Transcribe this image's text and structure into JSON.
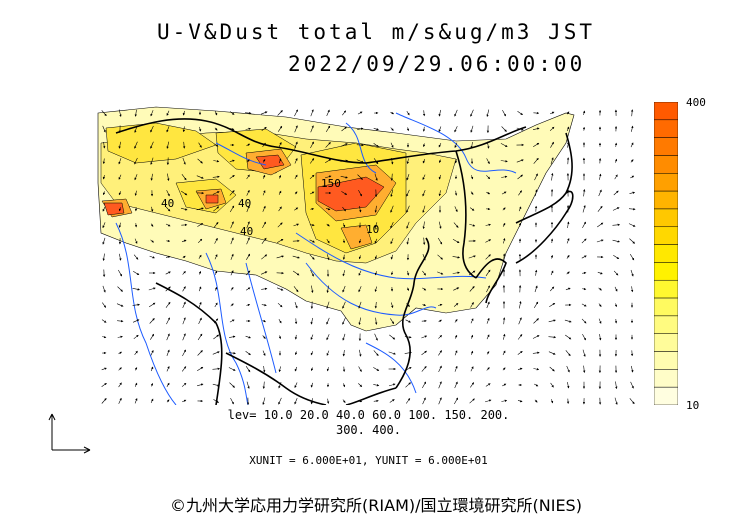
{
  "header": {
    "title": "U-V&Dust total m/s&ug/m3 JST",
    "datetime": "2022/09/29.06:00:00"
  },
  "colorbar": {
    "max_label": "400",
    "min_label": "10",
    "colors": [
      "#ff5a00",
      "#ff6a00",
      "#ff7a00",
      "#ff8c00",
      "#ffa000",
      "#ffb400",
      "#ffc800",
      "#ffd800",
      "#ffe800",
      "#fff200",
      "#fff830",
      "#fffa60",
      "#fffb80",
      "#fffc9a",
      "#fffdb0",
      "#fffdc8",
      "#fffee0"
    ]
  },
  "map": {
    "contour_labels": [
      "150",
      "10",
      "40",
      "40",
      "40"
    ],
    "land_color": "#ffffff",
    "dust_colors": {
      "light": "#fffbb8",
      "mid": "#fff07a",
      "yellow": "#ffe640",
      "orange": "#ffae30",
      "red": "#ff5a20"
    }
  },
  "footer": {
    "levels_line1": "lev= 10.0 20.0 40.0 60.0 100. 150. 200.",
    "levels_line2": "300. 400.",
    "unit_line": "XUNIT = 6.000E+01, YUNIT = 6.000E+01",
    "credit": "©九州大学応用力学研究所(RIAM)/国立環境研究所(NIES)"
  }
}
